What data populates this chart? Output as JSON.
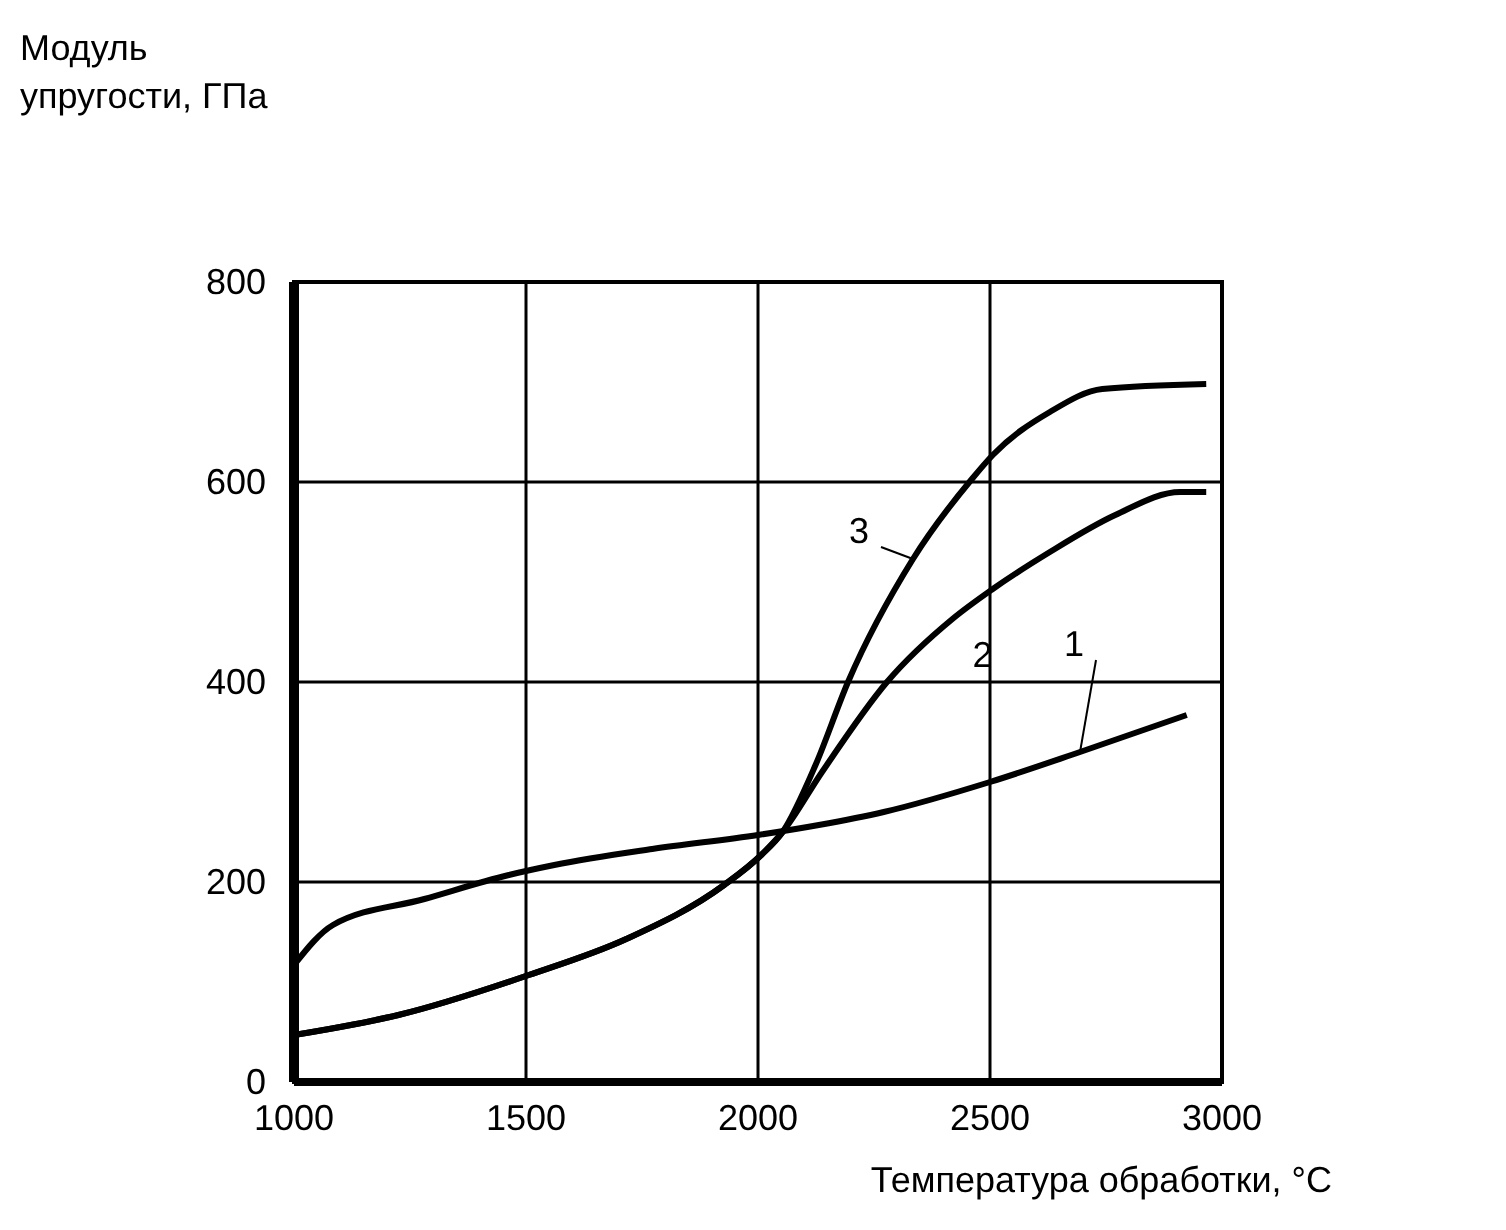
{
  "chart_data": {
    "type": "line",
    "xlabel": "Температура обработки, °C",
    "ylabel": "Модуль\nупругости, ГПа",
    "xlim": [
      1000,
      3000
    ],
    "ylim": [
      0,
      800
    ],
    "xticks": [
      1000,
      1500,
      2000,
      2500,
      3000
    ],
    "yticks": [
      0,
      200,
      400,
      600,
      800
    ],
    "grid": true,
    "marker": "none",
    "line_style": "solid",
    "series": [
      {
        "name": "1",
        "color": "#000000",
        "x": [
          1000,
          1084,
          1281,
          1463,
          1561,
          1772,
          2000,
          2131,
          2271,
          2500,
          2694,
          2924
        ],
        "values": [
          117,
          157,
          183,
          207,
          217,
          233,
          247,
          257,
          270,
          300,
          330,
          367
        ]
      },
      {
        "name": "2",
        "color": "#000000",
        "x": [
          1000,
          1225,
          1506,
          1716,
          1927,
          2007,
          2053,
          2138,
          2278,
          2419,
          2506,
          2629,
          2770,
          2910,
          2966
        ],
        "values": [
          47,
          67,
          107,
          143,
          197,
          227,
          250,
          310,
          400,
          463,
          493,
          530,
          567,
          590,
          590
        ]
      },
      {
        "name": "3",
        "color": "#000000",
        "x": [
          1000,
          1225,
          1506,
          1716,
          1927,
          2007,
          2053,
          2124,
          2194,
          2334,
          2461,
          2506,
          2629,
          2742,
          2966
        ],
        "values": [
          47,
          67,
          107,
          143,
          197,
          227,
          250,
          317,
          400,
          523,
          603,
          627,
          670,
          693,
          698
        ]
      }
    ]
  }
}
